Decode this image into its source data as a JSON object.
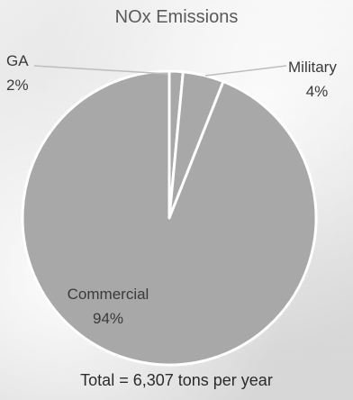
{
  "chart_data": {
    "type": "pie",
    "title": "NOx Emissions",
    "slices": [
      {
        "label": "GA",
        "pct_label": "2%",
        "value": 1.5,
        "color": "#a8a8a8"
      },
      {
        "label": "Military",
        "pct_label": "4%",
        "value": 4.5,
        "color": "#a8a8a8"
      },
      {
        "label": "Commercial",
        "pct_label": "94%",
        "value": 94,
        "color": "#a8a8a8"
      }
    ],
    "footer": "Total = 6,307 tons per year"
  }
}
